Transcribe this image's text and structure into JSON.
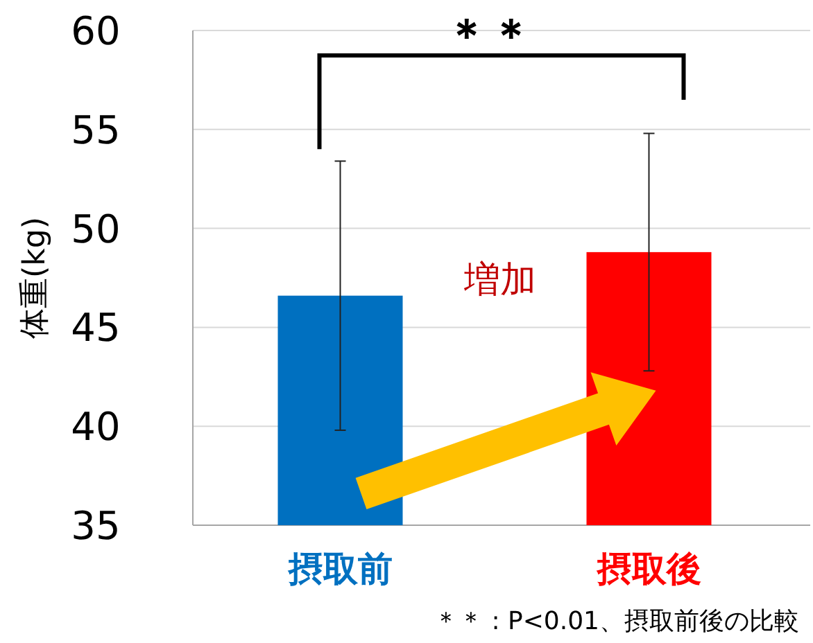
{
  "chart_data": {
    "type": "bar",
    "ylabel": "体重(kg)",
    "categories": [
      "摂取前",
      "摂取後"
    ],
    "values": [
      46.6,
      48.8
    ],
    "errors": [
      6.8,
      6.0
    ],
    "colors": [
      "#0070c0",
      "#ff0000"
    ],
    "ylim": [
      35,
      60
    ],
    "yticks": [
      35,
      40,
      45,
      50,
      55,
      60
    ],
    "grid": "y",
    "annotations": [
      "＊＊",
      "増加",
      "＊＊ : P<0.01、摂取前後の比較"
    ]
  }
}
